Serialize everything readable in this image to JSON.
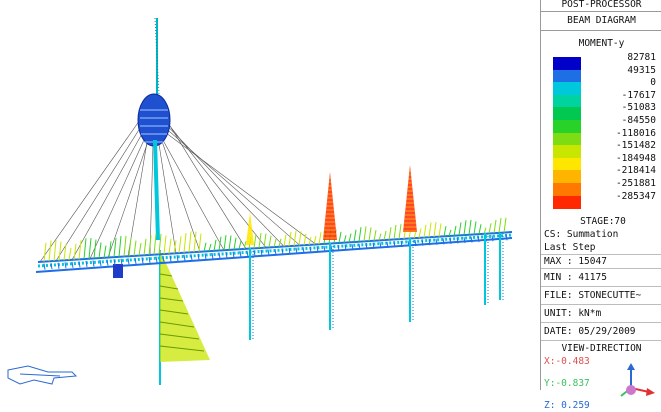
{
  "panel": {
    "title": "POST-PROCESSOR",
    "subtitle": "BEAM DIAGRAM",
    "component": "MOMENT-y",
    "legend": {
      "values": [
        "82781",
        "49315",
        "0",
        "-17617",
        "-51083",
        "-84550",
        "-118016",
        "-151482",
        "-184948",
        "-218414",
        "-251881",
        "-285347"
      ],
      "colors": [
        "#0000c8",
        "#1e6ee6",
        "#00c8dc",
        "#00d2a0",
        "#00c850",
        "#28d228",
        "#7ddc14",
        "#c8e600",
        "#ffe600",
        "#ffb400",
        "#ff7800",
        "#ff2800"
      ]
    },
    "stage": "STAGE:70",
    "cs": "CS: Summation",
    "step": "Last Step",
    "max": "MAX : 15047",
    "min": "MIN : 41175",
    "file": "FILE: STONECUTTE~",
    "unit": "UNIT: kN*m",
    "date": "DATE: 05/29/2009",
    "view_title": "VIEW-DIRECTION",
    "view_x": "X:-0.483",
    "view_y": "Y:-0.837",
    "view_z": "Z: 0.259"
  },
  "model": {
    "pylon_color": "#00c8dc",
    "cable_color": "#555555",
    "deck_color": "#1e6ee6",
    "moment_colors": [
      "#7ddc14",
      "#c8e600",
      "#28d228"
    ],
    "peak_colors": [
      "#ff2800",
      "#ffe600"
    ]
  }
}
